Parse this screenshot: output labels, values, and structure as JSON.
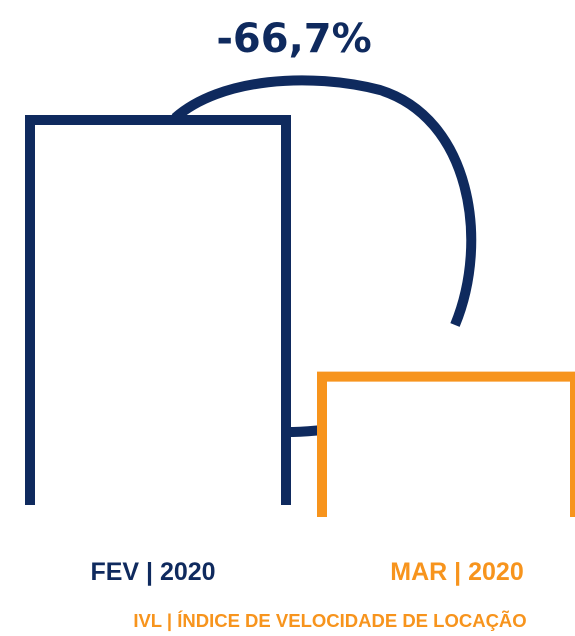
{
  "chart_data": {
    "type": "bar",
    "annotation": "-66,7%",
    "categories": [
      "FEV | 2020",
      "MAR | 2020"
    ],
    "series": [
      {
        "values": [
          3,
          1
        ]
      }
    ],
    "caption": "IVL | ÍNDICE DE VELOCIDADE DE LOCAÇÃO",
    "colors": {
      "FEV | 2020": "#0f2a5e",
      "MAR | 2020": "#f7941d",
      "caption": "#f7941d"
    },
    "style": "outlined bars open at the bottom, curved arc connector between bars",
    "grid": false,
    "legend": "none"
  }
}
